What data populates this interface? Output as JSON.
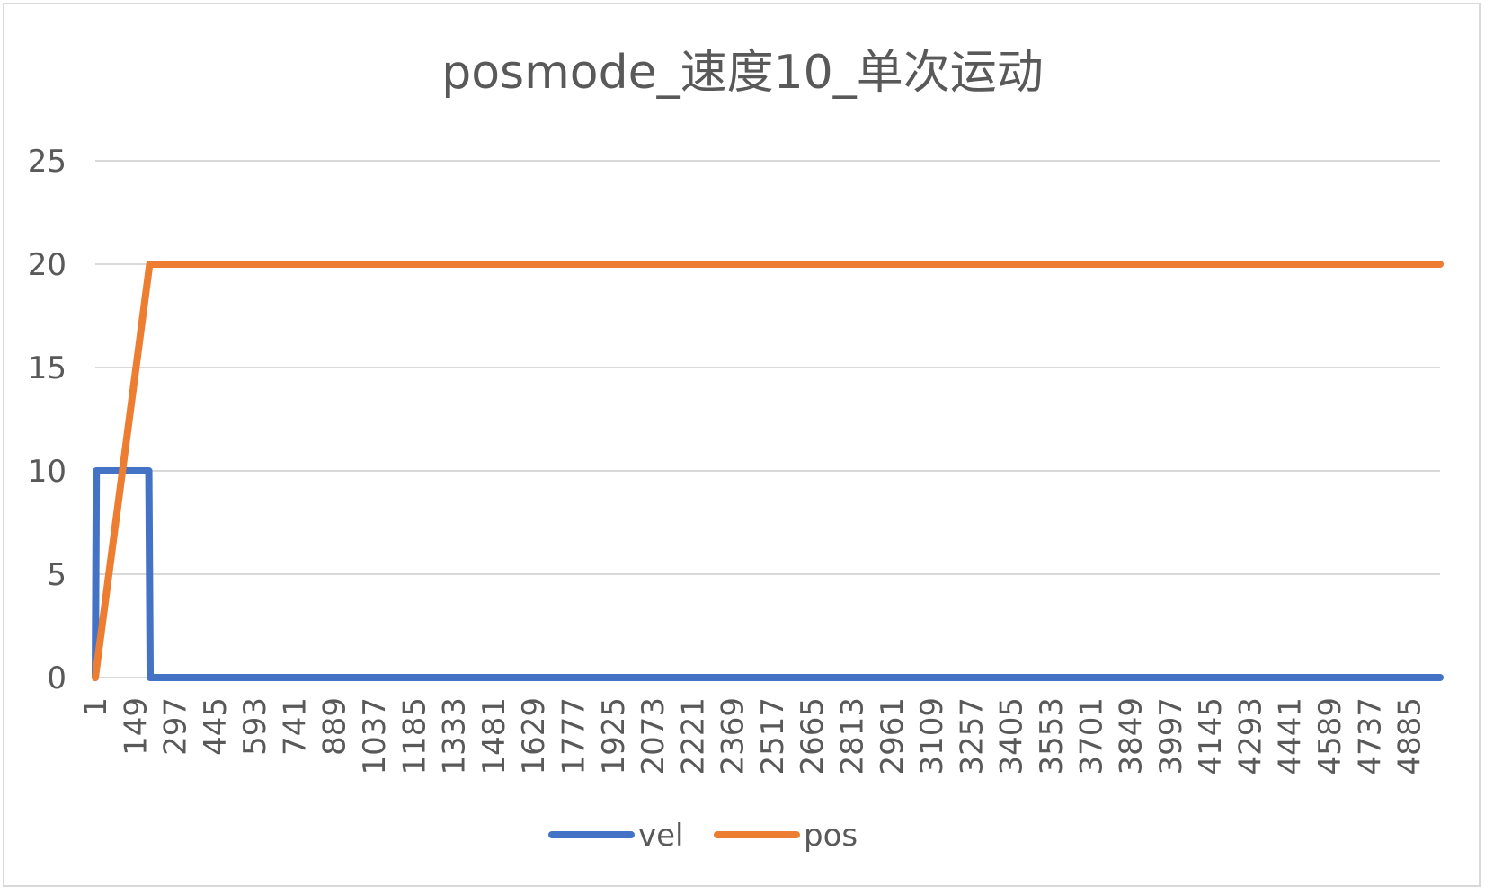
{
  "chart_data": {
    "type": "line",
    "title": "posmode_速度10_单次运动",
    "xlabel": "",
    "ylabel": "",
    "ylim": [
      0,
      25
    ],
    "yticks": [
      0,
      5,
      10,
      15,
      20,
      25
    ],
    "xlim": [
      1,
      5000
    ],
    "xticks": [
      "1",
      "149",
      "297",
      "445",
      "593",
      "741",
      "889",
      "1037",
      "1185",
      "1333",
      "1481",
      "1629",
      "1777",
      "1925",
      "2073",
      "2221",
      "2369",
      "2517",
      "2665",
      "2813",
      "2961",
      "3109",
      "3257",
      "3405",
      "3553",
      "3701",
      "3849",
      "3997",
      "4145",
      "4293",
      "4441",
      "4589",
      "4737",
      "4885"
    ],
    "grid": true,
    "legend": "bottom",
    "series": [
      {
        "name": "vel",
        "color": "#4472c4",
        "points": [
          [
            1,
            0
          ],
          [
            5,
            10
          ],
          [
            200,
            10
          ],
          [
            205,
            0
          ],
          [
            5000,
            0
          ]
        ]
      },
      {
        "name": "pos",
        "color": "#ed7d31",
        "points": [
          [
            1,
            0
          ],
          [
            203,
            20
          ],
          [
            5000,
            20
          ]
        ]
      }
    ]
  }
}
